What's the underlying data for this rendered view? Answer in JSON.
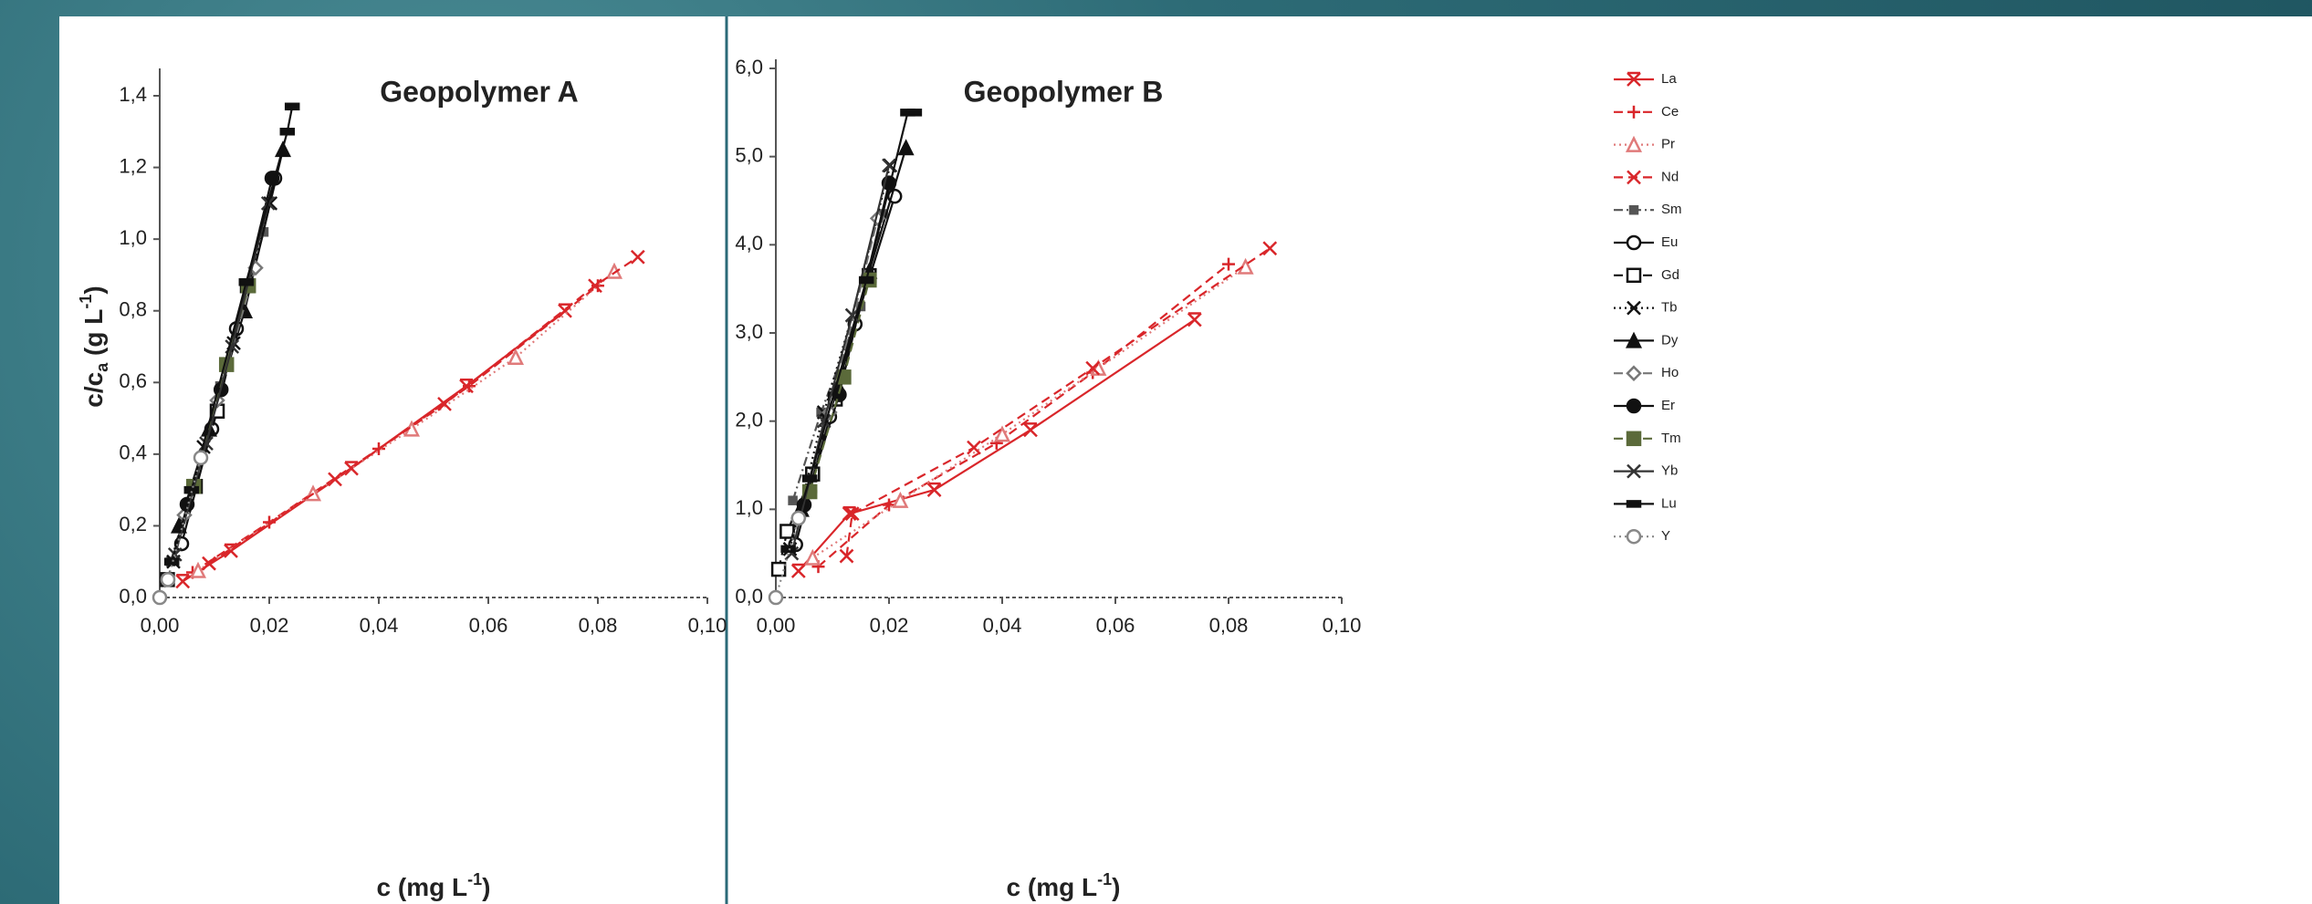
{
  "chart_data": [
    {
      "type": "line",
      "title": "Geopolymer A",
      "xlabel": {
        "text": "c (mg L",
        "exp": "-1",
        "close": ")"
      },
      "ylabel": {
        "text": "c/c",
        "sub": "a",
        "unit": " (g L",
        "exp": "-1",
        "close": ")"
      },
      "xlim": [
        0,
        0.1
      ],
      "ylim": [
        0,
        1.4
      ],
      "xticks": [
        {
          "value": 0,
          "label": "0,00"
        },
        {
          "value": 0.02,
          "label": "0,02"
        },
        {
          "value": 0.04,
          "label": "0,04"
        },
        {
          "value": 0.06,
          "label": "0,06"
        },
        {
          "value": 0.08,
          "label": "0,08"
        },
        {
          "value": 0.1,
          "label": "0,10"
        }
      ],
      "yticks": [
        {
          "value": 0,
          "label": "0,0"
        },
        {
          "value": 0.2,
          "label": "0,2"
        },
        {
          "value": 0.4,
          "label": "0,4"
        },
        {
          "value": 0.6,
          "label": "0,6"
        },
        {
          "value": 0.8,
          "label": "0,8"
        },
        {
          "value": 1,
          "label": "1,0"
        },
        {
          "value": 1.2,
          "label": "1,2"
        },
        {
          "value": 1.4,
          "label": "1,4"
        }
      ],
      "series": [
        {
          "color": "#d9262a",
          "marker": "xbox",
          "dash": "solid",
          "x": [
            0.0042,
            0.013,
            0.035,
            0.056,
            0.074
          ],
          "values": [
            0.045,
            0.13,
            0.36,
            0.59,
            0.8
          ]
        },
        {
          "color": "#d9262a",
          "marker": "plus",
          "dash": "dashed",
          "x": [
            0.006,
            0.02,
            0.04,
            0.0565,
            0.08
          ],
          "values": [
            0.07,
            0.21,
            0.415,
            0.59,
            0.87
          ]
        },
        {
          "color": "#e07a7a",
          "marker": "triangle",
          "dash": "dotted",
          "x": [
            0.007,
            0.028,
            0.046,
            0.065,
            0.083
          ],
          "values": [
            0.075,
            0.29,
            0.47,
            0.67,
            0.91
          ]
        },
        {
          "color": "#d9262a",
          "marker": "x",
          "dash": "dashed",
          "x": [
            0.009,
            0.032,
            0.052,
            0.0795,
            0.0873
          ],
          "values": [
            0.095,
            0.33,
            0.54,
            0.87,
            0.95
          ]
        },
        {
          "color": "#555555",
          "marker": "smallsquare",
          "dash": "dashdot",
          "x": [
            0.002,
            0.006,
            0.011,
            0.019
          ],
          "values": [
            0.1,
            0.31,
            0.59,
            1.02
          ]
        },
        {
          "color": "#111111",
          "marker": "circle",
          "dash": "solid",
          "x": [
            0.004,
            0.0095,
            0.014,
            0.021
          ],
          "values": [
            0.15,
            0.47,
            0.75,
            1.17
          ]
        },
        {
          "color": "#111111",
          "marker": "square",
          "dash": "dashed",
          "x": [
            0.0014,
            0.0065,
            0.0105,
            0.016
          ],
          "values": [
            0.05,
            0.31,
            0.52,
            0.87
          ]
        },
        {
          "color": "#111111",
          "marker": "x",
          "dash": "dotted",
          "x": [
            0.0025,
            0.008,
            0.0135,
            0.0202
          ],
          "values": [
            0.1,
            0.42,
            0.71,
            1.1
          ]
        },
        {
          "color": "#111111",
          "marker": "triangle-filled",
          "dash": "solid",
          "x": [
            0.0035,
            0.009,
            0.0155,
            0.0225
          ],
          "values": [
            0.2,
            0.47,
            0.8,
            1.25
          ]
        },
        {
          "color": "#777777",
          "marker": "diamond",
          "dash": "dashed",
          "x": [
            0.0045,
            0.0105,
            0.0175
          ],
          "values": [
            0.23,
            0.55,
            0.92
          ]
        },
        {
          "color": "#111111",
          "marker": "circle-filled",
          "dash": "solid",
          "x": [
            0.005,
            0.0112,
            0.0205
          ],
          "values": [
            0.26,
            0.58,
            1.17
          ]
        },
        {
          "color": "#5b6a3a",
          "marker": "square-filled",
          "dash": "dashed",
          "x": [
            0.0062,
            0.0122,
            0.0162
          ],
          "values": [
            0.31,
            0.65,
            0.87
          ]
        },
        {
          "color": "#333333",
          "marker": "x",
          "dash": "solid",
          "x": [
            0.0028,
            0.0085,
            0.0132,
            0.0198
          ],
          "values": [
            0.12,
            0.43,
            0.7,
            1.1
          ]
        },
        {
          "color": "#111111",
          "marker": "bar",
          "dash": "solid",
          "x": [
            0.0022,
            0.0058,
            0.0158,
            0.0233,
            0.0242
          ],
          "values": [
            0.1,
            0.3,
            0.88,
            1.3,
            1.37
          ]
        },
        {
          "color": "#888888",
          "marker": "circle",
          "dash": "dotted",
          "x": [
            0,
            0.0015,
            0.0075
          ],
          "values": [
            0,
            0.05,
            0.39
          ]
        }
      ]
    },
    {
      "type": "line",
      "title": "Geopolymer B",
      "xlabel": {
        "text": "c (mg L",
        "exp": "-1",
        "close": ")"
      },
      "xlim": [
        0,
        0.1
      ],
      "ylim": [
        0,
        6
      ],
      "xticks": [
        {
          "value": 0,
          "label": "0,00"
        },
        {
          "value": 0.02,
          "label": "0,02"
        },
        {
          "value": 0.04,
          "label": "0,04"
        },
        {
          "value": 0.06,
          "label": "0,06"
        },
        {
          "value": 0.08,
          "label": "0,08"
        },
        {
          "value": 0.1,
          "label": "0,10"
        }
      ],
      "yticks": [
        {
          "value": 0,
          "label": "0,0"
        },
        {
          "value": 1,
          "label": "1,0"
        },
        {
          "value": 2,
          "label": "2,0"
        },
        {
          "value": 3,
          "label": "3,0"
        },
        {
          "value": 4,
          "label": "4,0"
        },
        {
          "value": 5,
          "label": "5,0"
        },
        {
          "value": 6,
          "label": "6,0"
        }
      ],
      "legend": "right",
      "series": [
        {
          "name": "La",
          "color": "#d9262a",
          "marker": "xbox",
          "dash": "solid",
          "x": [
            0.004,
            0.013,
            0.028,
            0.045,
            0.074
          ],
          "values": [
            0.3,
            0.95,
            1.22,
            1.9,
            3.15
          ]
        },
        {
          "name": "Ce",
          "color": "#d9262a",
          "marker": "plus",
          "dash": "dashed",
          "x": [
            0.0075,
            0.02,
            0.039,
            0.056,
            0.08
          ],
          "values": [
            0.35,
            1.05,
            1.75,
            2.55,
            3.78
          ]
        },
        {
          "name": "Pr",
          "color": "#e07a7a",
          "marker": "triangle",
          "dash": "dotted",
          "x": [
            0.0065,
            0.022,
            0.04,
            0.057,
            0.083
          ],
          "values": [
            0.45,
            1.1,
            1.85,
            2.6,
            3.75
          ]
        },
        {
          "name": "Nd",
          "color": "#d9262a",
          "marker": "x",
          "dash": "dashed",
          "x": [
            0.0125,
            0.0135,
            0.035,
            0.056,
            0.0873
          ],
          "values": [
            0.47,
            0.95,
            1.7,
            2.6,
            3.96
          ]
        },
        {
          "name": "Sm",
          "color": "#555555",
          "marker": "smallsquare",
          "dash": "dashdot",
          "x": [
            0.003,
            0.008,
            0.015,
            0.019
          ],
          "values": [
            1.1,
            2.1,
            3.3,
            4.35
          ]
        },
        {
          "name": "Eu",
          "color": "#111111",
          "marker": "circle",
          "dash": "solid",
          "x": [
            0.0035,
            0.006,
            0.0095,
            0.014,
            0.021
          ],
          "values": [
            0.6,
            1.2,
            2.05,
            3.1,
            4.55
          ]
        },
        {
          "name": "Gd",
          "color": "#111111",
          "marker": "square",
          "dash": "dashed",
          "x": [
            0.0005,
            0.002,
            0.0065,
            0.0105,
            0.0165
          ],
          "values": [
            0.32,
            0.75,
            1.4,
            2.25,
            3.65
          ]
        },
        {
          "name": "Tb",
          "color": "#111111",
          "marker": "x",
          "dash": "dotted",
          "x": [
            0.0025,
            0.0085,
            0.0135,
            0.0202
          ],
          "values": [
            0.55,
            2.1,
            3.2,
            4.9
          ]
        },
        {
          "name": "Dy",
          "color": "#111111",
          "marker": "triangle-filled",
          "dash": "solid",
          "x": [
            0.0045,
            0.011,
            0.0165,
            0.023
          ],
          "values": [
            1,
            2.4,
            3.7,
            5.1
          ]
        },
        {
          "name": "Ho",
          "color": "#777777",
          "marker": "diamond",
          "dash": "dashed",
          "x": [
            0.004,
            0.0095,
            0.018
          ],
          "values": [
            0.9,
            2.1,
            4.3
          ]
        },
        {
          "name": "Er",
          "color": "#111111",
          "marker": "circle-filled",
          "dash": "solid",
          "x": [
            0.005,
            0.0112,
            0.02
          ],
          "values": [
            1.05,
            2.3,
            4.7
          ]
        },
        {
          "name": "Tm",
          "color": "#5b6a3a",
          "marker": "square-filled",
          "dash": "dashed",
          "x": [
            0.006,
            0.012,
            0.0165
          ],
          "values": [
            1.2,
            2.5,
            3.6
          ]
        },
        {
          "name": "Yb",
          "color": "#333333",
          "marker": "x",
          "dash": "solid",
          "x": [
            0.0028,
            0.0085,
            0.0135,
            0.02
          ],
          "values": [
            0.5,
            2,
            3.2,
            4.9
          ]
        },
        {
          "name": "Lu",
          "color": "#111111",
          "marker": "bar",
          "dash": "solid",
          "x": [
            0.0022,
            0.006,
            0.016,
            0.0233,
            0.0245
          ],
          "values": [
            0.55,
            1.35,
            3.6,
            5.5,
            5.5
          ]
        },
        {
          "name": "Y",
          "color": "#888888",
          "marker": "circle",
          "dash": "dotted",
          "x": [
            0,
            0.004
          ],
          "values": [
            0,
            0.9
          ]
        }
      ]
    }
  ]
}
